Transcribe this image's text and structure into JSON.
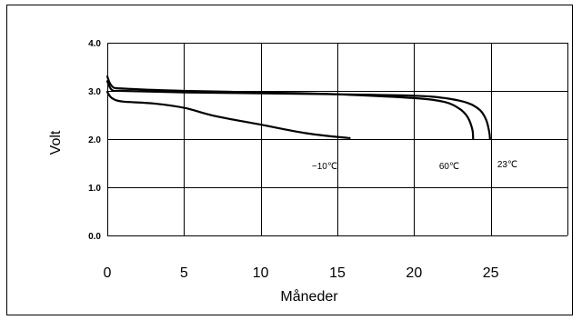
{
  "chart_data": {
    "type": "line",
    "xlabel": "Måneder",
    "ylabel": "Volt",
    "xlim": [
      0,
      30
    ],
    "ylim": [
      0,
      4
    ],
    "x_ticks": [
      "0",
      "5",
      "10",
      "15",
      "20",
      "25"
    ],
    "y_ticks": [
      "0.0",
      "1.0",
      "2.0",
      "3.0",
      "4.0"
    ],
    "grid": true,
    "series": [
      {
        "name": "−10℃",
        "x": [
          0,
          0.3,
          1,
          3,
          5,
          7,
          10,
          13,
          15.8
        ],
        "y": [
          2.98,
          2.85,
          2.78,
          2.74,
          2.65,
          2.48,
          2.3,
          2.12,
          2.02
        ]
      },
      {
        "name": "60℃",
        "x": [
          0,
          0.3,
          1,
          5,
          10,
          15,
          20,
          22,
          23,
          23.5,
          23.8,
          23.85
        ],
        "y": [
          3.3,
          3.1,
          3.05,
          3.0,
          2.97,
          2.93,
          2.85,
          2.77,
          2.62,
          2.45,
          2.2,
          2.0
        ]
      },
      {
        "name": "23℃",
        "x": [
          0,
          0.3,
          1,
          5,
          10,
          15,
          20,
          22,
          23.5,
          24.3,
          24.7,
          24.9,
          24.95
        ],
        "y": [
          3.2,
          3.02,
          3.0,
          2.97,
          2.95,
          2.93,
          2.9,
          2.85,
          2.75,
          2.6,
          2.4,
          2.15,
          2.0
        ]
      }
    ]
  }
}
